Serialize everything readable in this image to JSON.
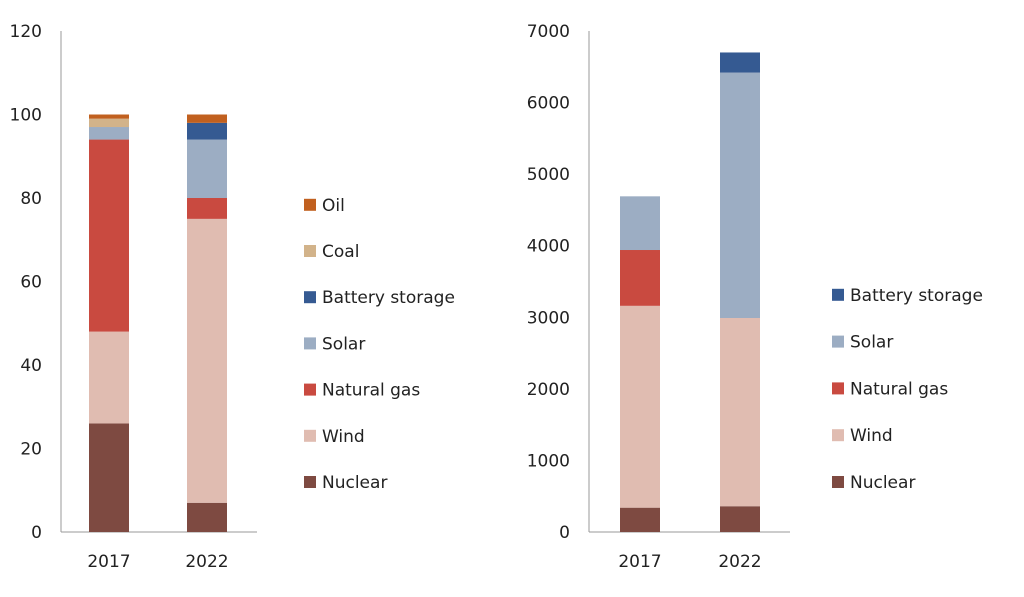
{
  "chart_data": [
    {
      "type": "bar",
      "stacked": true,
      "categories": [
        "2017",
        "2022"
      ],
      "ylim": [
        0,
        120
      ],
      "yticks": [
        0,
        20,
        40,
        60,
        80,
        100,
        120
      ],
      "grid": false,
      "legend_position": "right",
      "series": [
        {
          "name": "Nuclear",
          "color": "#7e4a41",
          "values": [
            26,
            7
          ]
        },
        {
          "name": "Wind",
          "color": "#e0bcb1",
          "values": [
            22,
            68
          ]
        },
        {
          "name": "Natural gas",
          "color": "#c94a40",
          "values": [
            46,
            5
          ]
        },
        {
          "name": "Solar",
          "color": "#9cadc3",
          "values": [
            3,
            14
          ]
        },
        {
          "name": "Battery storage",
          "color": "#355a92",
          "values": [
            0,
            4
          ]
        },
        {
          "name": "Coal",
          "color": "#d2b38a",
          "values": [
            2,
            0
          ]
        },
        {
          "name": "Oil",
          "color": "#c1601f",
          "values": [
            1,
            2
          ]
        }
      ]
    },
    {
      "type": "bar",
      "stacked": true,
      "categories": [
        "2017",
        "2022"
      ],
      "ylim": [
        0,
        7000
      ],
      "yticks": [
        0,
        1000,
        2000,
        3000,
        4000,
        5000,
        6000,
        7000
      ],
      "grid": false,
      "legend_position": "right",
      "series": [
        {
          "name": "Nuclear",
          "color": "#7e4a41",
          "values": [
            340,
            360
          ]
        },
        {
          "name": "Wind",
          "color": "#e0bcb1",
          "values": [
            2820,
            2630
          ]
        },
        {
          "name": "Natural gas",
          "color": "#c94a40",
          "values": [
            780,
            0
          ]
        },
        {
          "name": "Solar",
          "color": "#9cadc3",
          "values": [
            750,
            3430
          ]
        },
        {
          "name": "Battery storage",
          "color": "#355a92",
          "values": [
            0,
            280
          ]
        }
      ]
    }
  ]
}
